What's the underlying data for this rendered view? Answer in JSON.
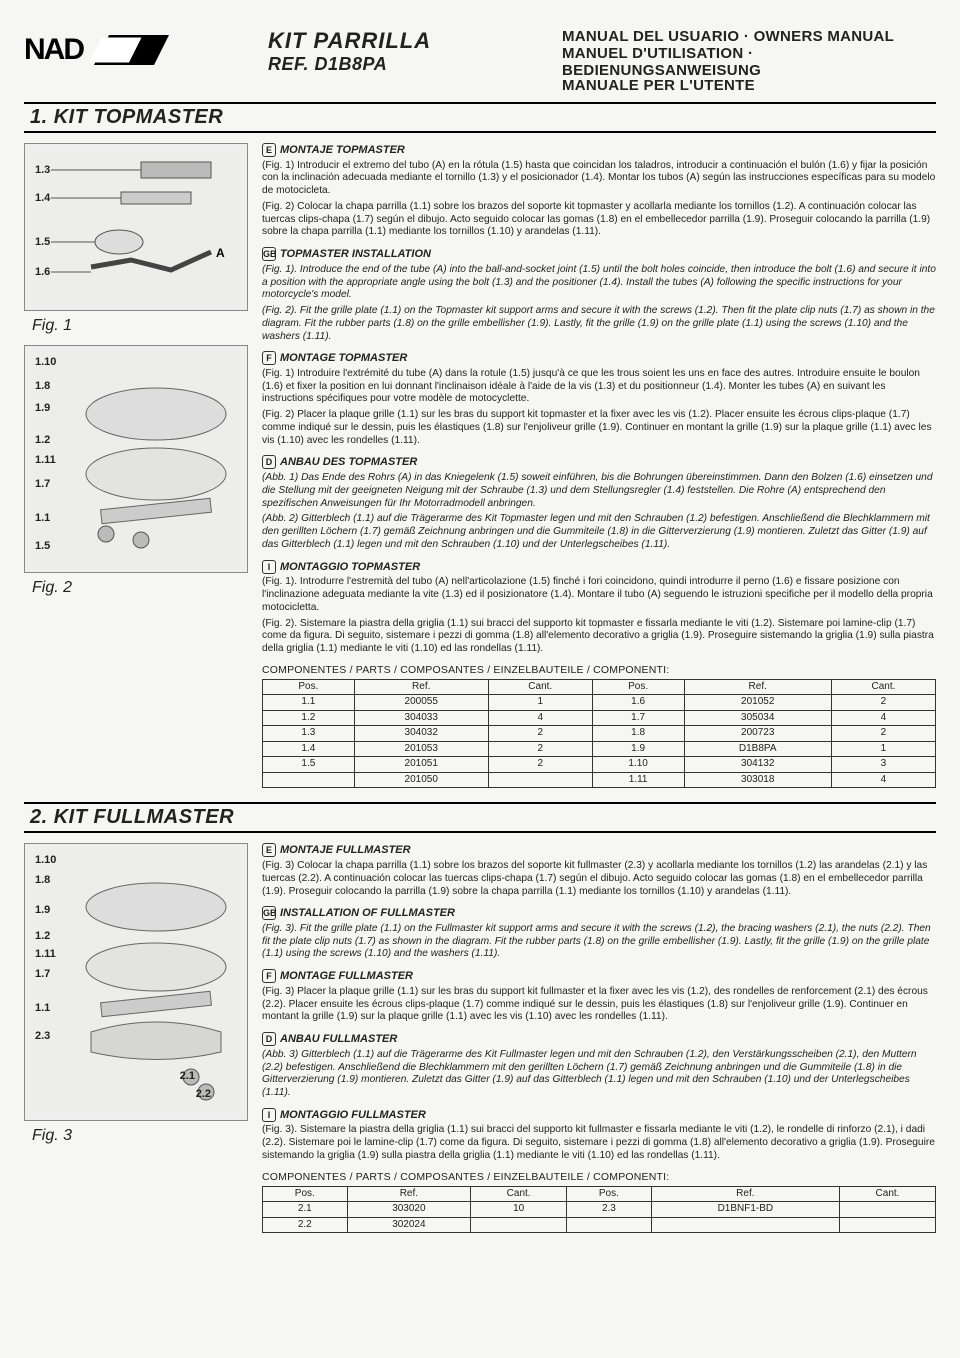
{
  "logo_text": "NAD",
  "title": {
    "line1": "KIT PARRILLA",
    "line2": "REF. D1B8PA"
  },
  "manual_titles": {
    "r1": "MANUAL DEL USUARIO · OWNERS MANUAL",
    "r2": "MANUEL D'UTILISATION · BEDIENUNGSANWEISUNG",
    "r3": "MANUALE PER L'UTENTE"
  },
  "section1": {
    "header": "1.  KIT TOPMASTER",
    "fig1_label": "Fig. 1",
    "fig2_label": "Fig. 2",
    "fig1_nums": {
      "n1": "1.3",
      "n2": "1.4",
      "n3": "1.5",
      "n4": "1.6",
      "a": "A"
    },
    "fig2_nums": {
      "a": "1.10",
      "b": "1.8",
      "c": "1.9",
      "d": "1.2",
      "e": "1.11",
      "f": "1.7",
      "g": "1.1",
      "h": "1.5"
    },
    "es": {
      "hdr": "MONTAJE TOPMASTER",
      "p1": "(Fig. 1) Introducir el extremo del tubo (A) en la rótula (1.5) hasta que coincidan los taladros, introducir a continuación el bulón (1.6) y fijar la posición con la inclinación adecuada mediante el tornillo (1.3) y el posicionador (1.4). Montar los tubos (A) según las instrucciones específicas para su modelo de motocicleta.",
      "p2": "(Fig. 2) Colocar la chapa parrilla (1.1) sobre los brazos del soporte kit topmaster y acollarla mediante los tornillos (1.2). A continuación colocar las tuercas clips-chapa (1.7) según el dibujo. Acto seguido colocar las gomas (1.8) en el embellecedor parrilla (1.9). Proseguir colocando la parrilla (1.9) sobre la chapa parrilla (1.1) mediante los tornillos (1.10) y arandelas (1.11)."
    },
    "en": {
      "hdr": "TOPMASTER INSTALLATION",
      "p1": "(Fig. 1). Introduce the end of the tube (A) into the ball-and-socket joint (1.5) until the bolt holes coincide, then introduce the bolt (1.6) and secure it into a position with the appropriate angle using the bolt (1.3) and the positioner (1.4). Install the tubes (A) following the specific instructions for your motorcycle's model.",
      "p2": "(Fig. 2). Fit the grille plate (1.1) on the Topmaster kit support arms and secure it with the screws (1.2). Then fit the plate clip nuts (1.7) as shown in the diagram. Fit the rubber parts (1.8) on the grille embellisher (1.9). Lastly, fit the grille (1.9) on the grille plate (1.1) using the screws (1.10) and the washers (1.11)."
    },
    "fr": {
      "hdr": "MONTAGE TOPMASTER",
      "p1": "(Fig. 1) Introduire l'extrémité du tube (A) dans la rotule (1.5) jusqu'à ce que les trous soient les uns en face des autres. Introduire ensuite le boulon (1.6) et fixer la position en lui donnant l'inclinaison idéale à l'aide de la vis (1.3) et du positionneur (1.4). Monter les tubes (A) en suivant les instructions spécifiques pour votre modèle de motocyclette.",
      "p2": "(Fig. 2) Placer la plaque grille (1.1) sur les bras du support kit topmaster et la fixer avec les vis (1.2). Placer ensuite les écrous clips-plaque (1.7) comme indiqué sur le dessin, puis les élastiques (1.8) sur l'enjoliveur grille (1.9). Continuer en montant la grille (1.9) sur la plaque grille (1.1) avec les vis (1.10) avec les rondelles (1.11)."
    },
    "de": {
      "hdr": "ANBAU DES TOPMASTER",
      "p1": "(Abb. 1) Das Ende des Rohrs (A) in das Kniegelenk (1.5) soweit einführen, bis die Bohrungen übereinstimmen. Dann den Bolzen (1.6) einsetzen und die Stellung mit der geeigneten Neigung mit der Schraube (1.3) und dem Stellungsregler (1.4) feststellen. Die Rohre (A) entsprechend den spezifischen Anweisungen für Ihr Motorradmodell anbringen.",
      "p2": "(Abb. 2) Gitterblech (1.1) auf die Trägerarme des Kit Topmaster legen und mit den Schrauben (1.2) befestigen. Anschließend die Blechklammern mit den gerillten Löchern (1.7) gemäß Zeichnung anbringen und die Gummiteile (1.8) in die Gitterverzierung (1.9) montieren. Zuletzt das Gitter (1.9) auf das Gitterblech (1.1) legen und mit den Schrauben (1.10) und der Unterlegscheibes (1.11)."
    },
    "it": {
      "hdr": "MONTAGGIO TOPMASTER",
      "p1": "(Fig. 1). Introdurre l'estremità del tubo (A) nell'articolazione (1.5) finché i fori coincidono, quindi introdurre il perno (1.6) e fissare posizione con l'inclinazione adeguata mediante la vite (1.3) ed il posizionatore (1.4). Montare il tubo (A) seguendo le istruzioni specifiche per il modello della propria motocicletta.",
      "p2": "(Fig. 2). Sistemare la piastra della griglia (1.1) sui bracci del supporto kit topmaster e fissarla mediante le viti (1.2). Sistemare poi lamine-clip (1.7) come da figura. Di seguito, sistemare i pezzi di gomma (1.8) all'elemento decorativo a griglia (1.9). Proseguire sistemando la griglia (1.9) sulla piastra della griglia (1.1) mediante le viti (1.10) ed las rondellas (1.11)."
    },
    "parts_title": "COMPONENTES / PARTS / COMPOSANTES / EINZELBAUTEILE / COMPONENTI:",
    "parts_cols": [
      "Pos.",
      "Ref.",
      "Cant.",
      "Pos.",
      "Ref.",
      "Cant."
    ],
    "parts_rows": [
      [
        "1.1",
        "200055",
        "1",
        "1.6",
        "201052",
        "2"
      ],
      [
        "1.2",
        "304033",
        "4",
        "1.7",
        "305034",
        "4"
      ],
      [
        "1.3",
        "304032",
        "2",
        "1.8",
        "200723",
        "2"
      ],
      [
        "1.4",
        "201053",
        "2",
        "1.9",
        "D1B8PA",
        "1"
      ],
      [
        "1.5",
        "201051",
        "2",
        "1.10",
        "304132",
        "3"
      ],
      [
        "",
        "201050",
        "",
        "1.11",
        "303018",
        "4"
      ]
    ]
  },
  "section2": {
    "header": "2.  KIT FULLMASTER",
    "fig3_label": "Fig. 3",
    "fig3_nums": {
      "a": "1.10",
      "b": "1.8",
      "c": "1.9",
      "d": "1.2",
      "e": "1.11",
      "f": "1.7",
      "g": "1.1",
      "h": "2.3",
      "i": "2.1",
      "j": "2.2"
    },
    "es": {
      "hdr": "MONTAJE FULLMASTER",
      "p1": "(Fig. 3) Colocar la chapa parrilla (1.1) sobre los brazos del soporte kit fullmaster (2.3) y acollarla mediante los tornillos (1.2) las arandelas (2.1) y las tuercas (2.2). A continuación colocar las tuercas clips-chapa (1.7) según el dibujo. Acto seguido colocar las gomas (1.8) en el embellecedor parrilla (1.9). Proseguir colocando la parrilla (1.9) sobre la chapa parrilla (1.1) mediante los tornillos (1.10) y arandelas (1.11)."
    },
    "en": {
      "hdr": "INSTALLATION OF FULLMASTER",
      "p1": "(Fig. 3). Fit the grille plate (1.1) on the Fullmaster kit support arms and secure it with the screws (1.2), the bracing washers (2.1), the nuts (2.2). Then fit the plate clip nuts (1.7) as shown in the diagram. Fit the rubber parts (1.8) on the grille embellisher (1.9). Lastly, fit the grille (1.9) on the grille plate (1.1) using the screws (1.10) and the washers (1.11)."
    },
    "fr": {
      "hdr": "MONTAGE FULLMASTER",
      "p1": "(Fig. 3) Placer la plaque grille (1.1) sur les bras du support kit fullmaster et la fixer avec les vis (1.2), des rondelles de renforcement (2.1) des écrous (2.2). Placer ensuite les écrous clips-plaque (1.7) comme indiqué sur le dessin, puis les élastiques (1.8) sur l'enjoliveur grille (1.9). Continuer en montant la grille (1.9) sur la plaque grille (1.1) avec les vis (1.10) avec les rondelles (1.11)."
    },
    "de": {
      "hdr": "ANBAU FULLMASTER",
      "p1": "(Abb. 3) Gitterblech (1.1) auf die Trägerarme des Kit Fullmaster legen und mit den Schrauben (1.2), den Verstärkungsscheiben (2.1), den Muttern (2.2) befestigen. Anschließend die Blechklammern mit den gerillten Löchern (1.7) gemäß Zeichnung anbringen und die Gummiteile (1.8) in die Gitterverzierung (1.9) montieren. Zuletzt das Gitter (1.9) auf das Gitterblech (1.1) legen und mit den Schrauben (1.10) und der Unterlegscheibes (1.11)."
    },
    "it": {
      "hdr": "MONTAGGIO FULLMASTER",
      "p1": "(Fig. 3). Sistemare la piastra della griglia (1.1) sui bracci del supporto kit fullmaster e fissarla mediante le viti (1.2), le rondelle di rinforzo (2.1), i dadi (2.2). Sistemare poi le lamine-clip (1.7) come da figura. Di seguito, sistemare i pezzi di gomma (1.8) all'elemento decorativo a griglia (1.9). Proseguire sistemando la griglia (1.9) sulla piastra della griglia (1.1) mediante le viti (1.10) ed las rondellas (1.11)."
    },
    "parts_title": "COMPONENTES / PARTS / COMPOSANTES / EINZELBAUTEILE / COMPONENTI:",
    "parts_cols": [
      "Pos.",
      "Ref.",
      "Cant.",
      "Pos.",
      "Ref.",
      "Cant."
    ],
    "parts_rows": [
      [
        "2.1",
        "303020",
        "10",
        "2.3",
        "D1BNF1-BD",
        ""
      ],
      [
        "2.2",
        "302024",
        "",
        "",
        "",
        ""
      ]
    ]
  }
}
